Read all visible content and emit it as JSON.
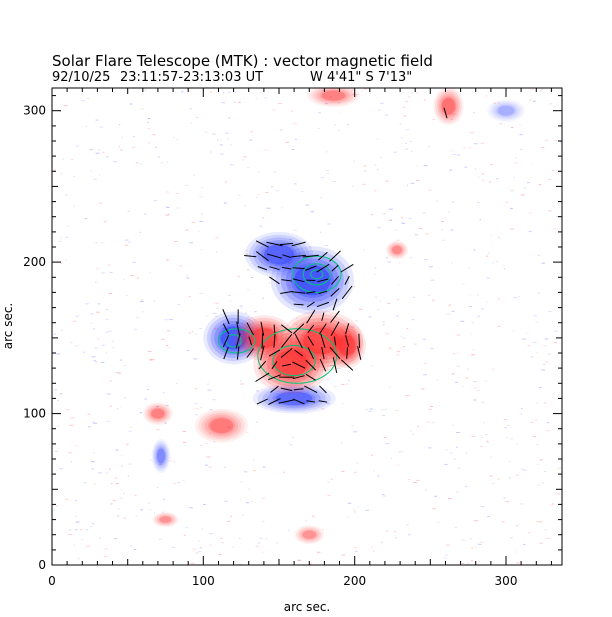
{
  "chart_data": {
    "type": "heatmap",
    "title": "Solar Flare Telescope (MTK) : vector magnetic field",
    "subtitle_date": "92/10/25",
    "subtitle_time": "23:11:57-23:13:03 UT",
    "subtitle_position": "W 4'41\"  S 7'13\"",
    "xlabel": "arc sec.",
    "ylabel": "arc sec.",
    "xlim": [
      0,
      337
    ],
    "ylim": [
      0,
      315
    ],
    "xticks": [
      0,
      100,
      200,
      300
    ],
    "yticks": [
      0,
      100,
      200,
      300
    ],
    "colors": {
      "positive": "#ff2a2a",
      "negative": "#2a3cff",
      "contour": "#00c878",
      "vector": "#000000"
    },
    "positive_blobs": [
      {
        "x": 158,
        "y": 133,
        "rx": 20,
        "ry": 16,
        "strength": 1.0
      },
      {
        "x": 178,
        "y": 148,
        "rx": 22,
        "ry": 16,
        "strength": 0.95
      },
      {
        "x": 140,
        "y": 150,
        "rx": 16,
        "ry": 12,
        "strength": 0.9
      },
      {
        "x": 195,
        "y": 145,
        "rx": 10,
        "ry": 12,
        "strength": 0.8
      },
      {
        "x": 112,
        "y": 92,
        "rx": 14,
        "ry": 9,
        "strength": 0.55
      },
      {
        "x": 262,
        "y": 303,
        "rx": 8,
        "ry": 10,
        "strength": 0.6
      },
      {
        "x": 186,
        "y": 310,
        "rx": 14,
        "ry": 6,
        "strength": 0.5
      },
      {
        "x": 70,
        "y": 100,
        "rx": 8,
        "ry": 6,
        "strength": 0.5
      },
      {
        "x": 228,
        "y": 208,
        "rx": 6,
        "ry": 5,
        "strength": 0.45
      },
      {
        "x": 75,
        "y": 30,
        "rx": 7,
        "ry": 4,
        "strength": 0.4
      },
      {
        "x": 170,
        "y": 20,
        "rx": 8,
        "ry": 5,
        "strength": 0.4
      }
    ],
    "negative_blobs": [
      {
        "x": 172,
        "y": 188,
        "rx": 22,
        "ry": 18,
        "strength": 1.0
      },
      {
        "x": 120,
        "y": 150,
        "rx": 16,
        "ry": 14,
        "strength": 0.95
      },
      {
        "x": 150,
        "y": 205,
        "rx": 18,
        "ry": 12,
        "strength": 0.8
      },
      {
        "x": 160,
        "y": 110,
        "rx": 22,
        "ry": 8,
        "strength": 0.75
      },
      {
        "x": 72,
        "y": 72,
        "rx": 5,
        "ry": 9,
        "strength": 0.5
      },
      {
        "x": 300,
        "y": 300,
        "rx": 10,
        "ry": 6,
        "strength": 0.3
      }
    ],
    "contours_positive": [
      {
        "x": 162,
        "y": 138,
        "rx": 26,
        "ry": 18
      },
      {
        "x": 160,
        "y": 135,
        "rx": 14,
        "ry": 10
      }
    ],
    "contours_negative": [
      {
        "x": 175,
        "y": 192,
        "rx": 16,
        "ry": 12
      },
      {
        "x": 175,
        "y": 192,
        "rx": 9,
        "ry": 7
      },
      {
        "x": 175,
        "y": 192,
        "rx": 4,
        "ry": 3
      },
      {
        "x": 122,
        "y": 148,
        "rx": 12,
        "ry": 8
      },
      {
        "x": 120,
        "y": 148,
        "rx": 5,
        "ry": 4
      }
    ],
    "vector_field": {
      "region": {
        "x0": 115,
        "x1": 220,
        "y0": 100,
        "y1": 212
      },
      "step": 8,
      "length": 7
    }
  }
}
